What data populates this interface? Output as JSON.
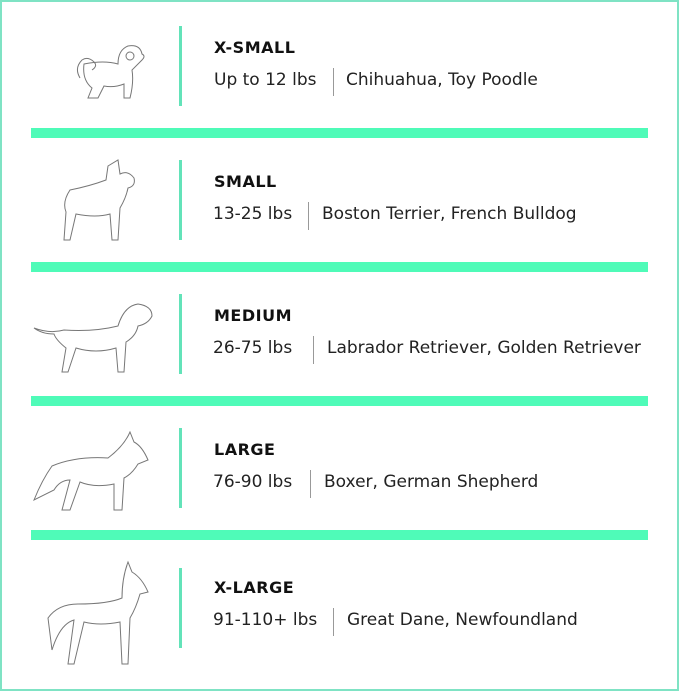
{
  "accent_color": "#4ffbb8",
  "sizes": [
    {
      "title": "X-SMALL",
      "weight": "Up to 12 lbs",
      "breeds": "Chihuahua, Toy Poodle",
      "icon": "small-fluffy-dog-icon"
    },
    {
      "title": "SMALL",
      "weight": "13-25 lbs",
      "breeds": "Boston Terrier, French Bulldog",
      "icon": "bulldog-icon"
    },
    {
      "title": "MEDIUM",
      "weight": "26-75 lbs",
      "breeds": "Labrador Retriever, Golden Retriever",
      "icon": "retriever-icon"
    },
    {
      "title": "LARGE",
      "weight": "76-90 lbs",
      "breeds": "Boxer, German Shepherd",
      "icon": "shepherd-icon"
    },
    {
      "title": "X-LARGE",
      "weight": "91-110+ lbs",
      "breeds": "Great Dane, Newfoundland",
      "icon": "great-dane-icon"
    }
  ]
}
